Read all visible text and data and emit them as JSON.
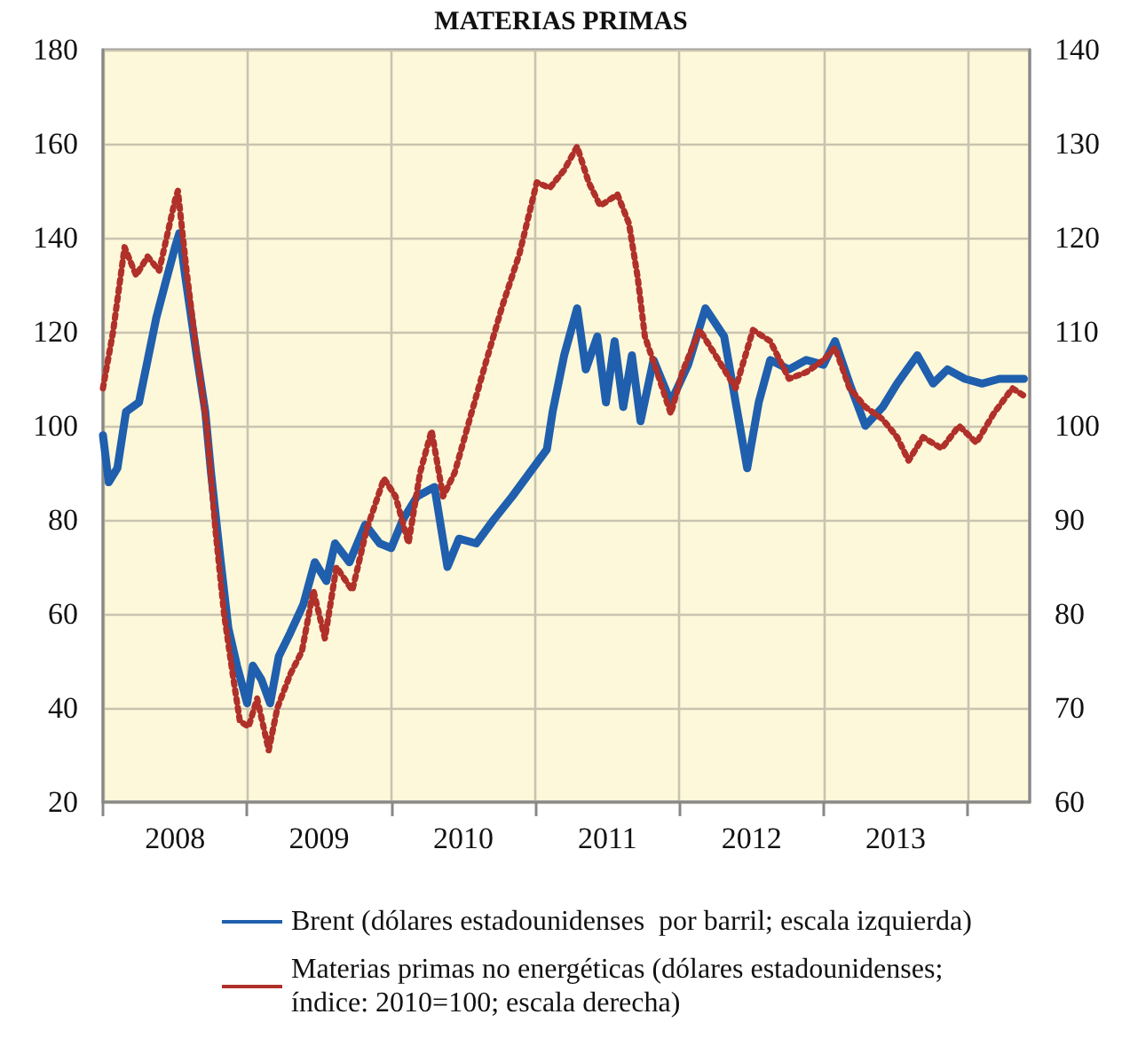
{
  "chart_data": {
    "type": "line",
    "title": "MATERIAS PRIMAS",
    "xlim": [
      2008,
      2014.43
    ],
    "xticks": [
      {
        "value": 2008,
        "label": null
      },
      {
        "value": 2008.5,
        "label": "2008"
      },
      {
        "value": 2009,
        "label": null
      },
      {
        "value": 2009.5,
        "label": "2009"
      },
      {
        "value": 2010,
        "label": null
      },
      {
        "value": 2010.5,
        "label": "2010"
      },
      {
        "value": 2011,
        "label": null
      },
      {
        "value": 2011.5,
        "label": "2011"
      },
      {
        "value": 2012,
        "label": null
      },
      {
        "value": 2012.5,
        "label": "2012"
      },
      {
        "value": 2013,
        "label": null
      },
      {
        "value": 2013.5,
        "label": "2013"
      },
      {
        "value": 2014,
        "label": null
      }
    ],
    "ylim": [
      20,
      180
    ],
    "yticks": [
      20,
      40,
      60,
      80,
      100,
      120,
      140,
      160,
      180
    ],
    "y2lim": [
      60,
      140
    ],
    "y2ticks": [
      60,
      70,
      80,
      90,
      100,
      110,
      120,
      130,
      140
    ],
    "grid": true,
    "legend": "bottom",
    "marker": "none",
    "series": [
      {
        "name": "Brent (dólares estadounidenses  por barril; escala izquierda)",
        "color": "#1f5fad",
        "line_style": "solid",
        "x": [
          2008.0,
          2008.04,
          2008.1,
          2008.16,
          2008.25,
          2008.31,
          2008.37,
          2008.43,
          2008.5,
          2008.53,
          2008.57,
          2008.65,
          2008.71,
          2008.75,
          2008.81,
          2008.87,
          2008.93,
          2009.0,
          2009.04,
          2009.1,
          2009.16,
          2009.22,
          2009.3,
          2009.39,
          2009.47,
          2009.55,
          2009.61,
          2009.71,
          2009.82,
          2009.92,
          2010.0,
          2010.08,
          2010.18,
          2010.3,
          2010.39,
          2010.47,
          2010.59,
          2010.71,
          2010.84,
          2010.96,
          2011.08,
          2011.12,
          2011.2,
          2011.29,
          2011.35,
          2011.43,
          2011.49,
          2011.55,
          2011.61,
          2011.67,
          2011.73,
          2011.82,
          2011.94,
          2012.06,
          2012.18,
          2012.31,
          2012.39,
          2012.47,
          2012.55,
          2012.63,
          2012.76,
          2012.88,
          2013.0,
          2013.08,
          2013.18,
          2013.29,
          2013.41,
          2013.51,
          2013.65,
          2013.76,
          2013.86,
          2013.98,
          2014.1,
          2014.22,
          2014.39
        ],
        "values": [
          98,
          88,
          91,
          103,
          105,
          114,
          123,
          130,
          138,
          141,
          132,
          115,
          103,
          90,
          73,
          57,
          49,
          41,
          49,
          46,
          41,
          51,
          56,
          62,
          71,
          67,
          75,
          71,
          79,
          75,
          74,
          80,
          85,
          87,
          70,
          76,
          75,
          80,
          85,
          90,
          95,
          103,
          115,
          125,
          112,
          119,
          105,
          118,
          104,
          115,
          101,
          114,
          105,
          113,
          125,
          119,
          105,
          91,
          105,
          114,
          112,
          114,
          113,
          118,
          109,
          100,
          104,
          109,
          115,
          109,
          112,
          110,
          109,
          110,
          110
        ]
      },
      {
        "name": "Materias primas no energéticas (dólares estadounidenses; índice: 2010=100; escala derecha)",
        "color": "#b0302a",
        "line_style": "dotted",
        "axis": "y2",
        "x": [
          2008.0,
          2008.07,
          2008.15,
          2008.23,
          2008.31,
          2008.39,
          2008.5,
          2008.52,
          2008.58,
          2008.64,
          2008.72,
          2008.78,
          2008.84,
          2008.9,
          2008.95,
          2009.01,
          2009.07,
          2009.15,
          2009.21,
          2009.3,
          2009.38,
          2009.46,
          2009.54,
          2009.62,
          2009.73,
          2009.83,
          2009.95,
          2010.03,
          2010.12,
          2010.2,
          2010.28,
          2010.36,
          2010.44,
          2010.55,
          2010.65,
          2010.77,
          2010.89,
          2011.01,
          2011.1,
          2011.2,
          2011.29,
          2011.37,
          2011.45,
          2011.57,
          2011.65,
          2011.71,
          2011.76,
          2011.86,
          2011.94,
          2012.02,
          2012.14,
          2012.27,
          2012.39,
          2012.51,
          2012.63,
          2012.76,
          2012.88,
          2013.0,
          2013.08,
          2013.18,
          2013.29,
          2013.41,
          2013.51,
          2013.59,
          2013.69,
          2013.82,
          2013.94,
          2014.06,
          2014.18,
          2014.31,
          2014.39
        ],
        "values": [
          104,
          110,
          119,
          116,
          118,
          116.5,
          124,
          125,
          116.5,
          109,
          100,
          89,
          80,
          73.6,
          68.6,
          68,
          71,
          65.5,
          70,
          73.6,
          76,
          82.5,
          77.4,
          85,
          82.5,
          89,
          94.4,
          92.5,
          87.5,
          95,
          99.5,
          92.5,
          95,
          101,
          106.4,
          112.7,
          118.3,
          125.9,
          125.3,
          127.2,
          129.7,
          125.9,
          123.4,
          124.6,
          121.5,
          115.8,
          109.5,
          105,
          101.3,
          105.7,
          110.2,
          107,
          104,
          110.2,
          109,
          105,
          105.7,
          107,
          108.3,
          104,
          102,
          100.7,
          98.8,
          96.3,
          98.8,
          97.6,
          100,
          98.2,
          101.3,
          104,
          103.2
        ]
      }
    ]
  }
}
